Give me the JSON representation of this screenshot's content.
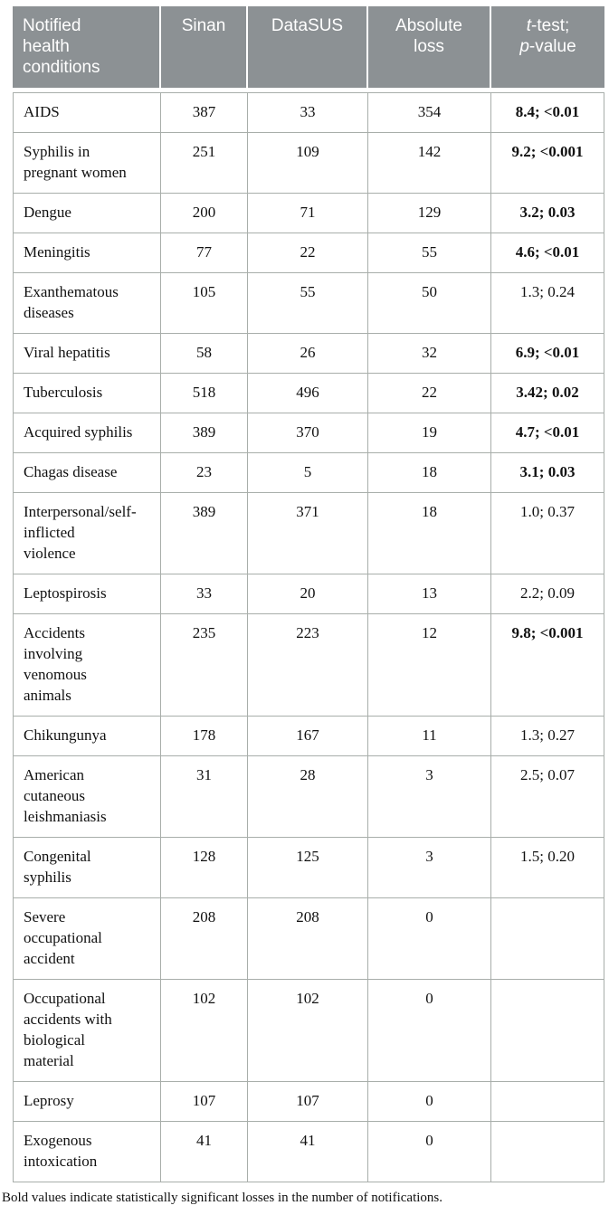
{
  "table": {
    "columns": {
      "condition": "Notified\nhealth\nconditions",
      "sinan": "Sinan",
      "datasus": "DataSUS",
      "absolute_loss": "Absolute\nloss",
      "ttest": {
        "line1_italic": "t",
        "line1_rest": "-test;",
        "line2_italic": "p",
        "line2_rest": "-value"
      }
    },
    "rows": [
      {
        "condition": "AIDS",
        "sinan": "387",
        "datasus": "33",
        "loss": "354",
        "ttest": "8.4; <0.01",
        "significant": true
      },
      {
        "condition": "Syphilis in\npregnant women",
        "sinan": "251",
        "datasus": "109",
        "loss": "142",
        "ttest": "9.2; <0.001",
        "significant": true
      },
      {
        "condition": "Dengue",
        "sinan": "200",
        "datasus": "71",
        "loss": "129",
        "ttest": "3.2; 0.03",
        "significant": true
      },
      {
        "condition": "Meningitis",
        "sinan": "77",
        "datasus": "22",
        "loss": "55",
        "ttest": "4.6; <0.01",
        "significant": true
      },
      {
        "condition": "Exanthematous\ndiseases",
        "sinan": "105",
        "datasus": "55",
        "loss": "50",
        "ttest": "1.3; 0.24",
        "significant": false
      },
      {
        "condition": "Viral hepatitis",
        "sinan": "58",
        "datasus": "26",
        "loss": "32",
        "ttest": "6.9; <0.01",
        "significant": true
      },
      {
        "condition": "Tuberculosis",
        "sinan": "518",
        "datasus": "496",
        "loss": "22",
        "ttest": "3.42; 0.02",
        "significant": true
      },
      {
        "condition": "Acquired syphilis",
        "sinan": "389",
        "datasus": "370",
        "loss": "19",
        "ttest": "4.7; <0.01",
        "significant": true
      },
      {
        "condition": "Chagas disease",
        "sinan": "23",
        "datasus": "5",
        "loss": "18",
        "ttest": "3.1; 0.03",
        "significant": true
      },
      {
        "condition": "Interpersonal/self-\ninflicted\nviolence",
        "sinan": "389",
        "datasus": "371",
        "loss": "18",
        "ttest": "1.0; 0.37",
        "significant": false
      },
      {
        "condition": "Leptospirosis",
        "sinan": "33",
        "datasus": "20",
        "loss": "13",
        "ttest": "2.2; 0.09",
        "significant": false
      },
      {
        "condition": "Accidents\ninvolving\nvenomous\nanimals",
        "sinan": "235",
        "datasus": "223",
        "loss": "12",
        "ttest": "9.8; <0.001",
        "significant": true
      },
      {
        "condition": "Chikungunya",
        "sinan": "178",
        "datasus": "167",
        "loss": "11",
        "ttest": "1.3; 0.27",
        "significant": false
      },
      {
        "condition": "American\ncutaneous\nleishmaniasis",
        "sinan": "31",
        "datasus": "28",
        "loss": "3",
        "ttest": "2.5; 0.07",
        "significant": false
      },
      {
        "condition": "Congenital\nsyphilis",
        "sinan": "128",
        "datasus": "125",
        "loss": "3",
        "ttest": "1.5; 0.20",
        "significant": false
      },
      {
        "condition": "Severe\noccupational\naccident",
        "sinan": "208",
        "datasus": "208",
        "loss": "0",
        "ttest": "",
        "significant": false
      },
      {
        "condition": "Occupational\naccidents with\nbiological\nmaterial",
        "sinan": "102",
        "datasus": "102",
        "loss": "0",
        "ttest": "",
        "significant": false
      },
      {
        "condition": "Leprosy",
        "sinan": "107",
        "datasus": "107",
        "loss": "0",
        "ttest": "",
        "significant": false
      },
      {
        "condition": "Exogenous\nintoxication",
        "sinan": "41",
        "datasus": "41",
        "loss": "0",
        "ttest": "",
        "significant": false
      }
    ],
    "footnote": "Bold values indicate statistically significant losses in the number of notifications."
  },
  "colors": {
    "header_bg": "#8c9194",
    "header_text": "#ffffff",
    "border": "#a8aeaa",
    "body_text": "#111111"
  }
}
